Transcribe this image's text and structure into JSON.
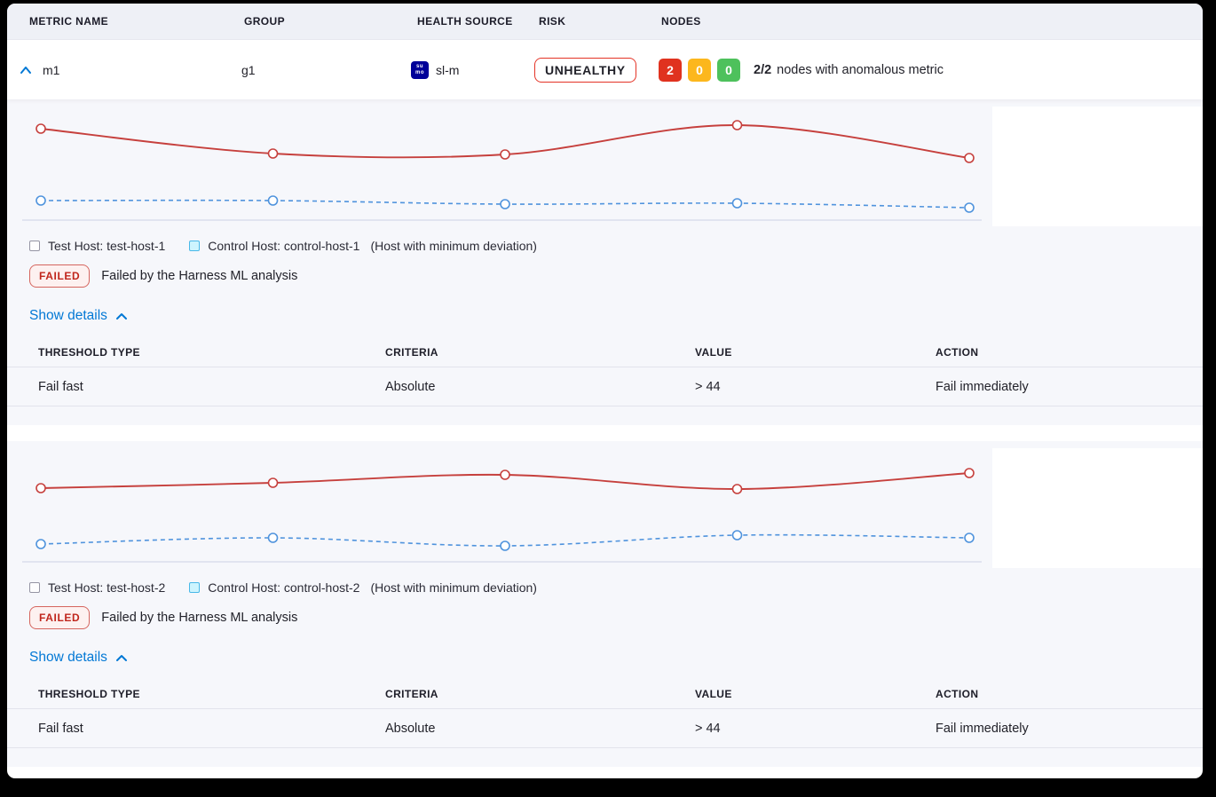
{
  "table_header": {
    "metric_name": "METRIC NAME",
    "group": "GROUP",
    "health_source": "HEALTH SOURCE",
    "risk": "RISK",
    "nodes": "NODES"
  },
  "metric_row": {
    "name": "m1",
    "group": "g1",
    "health_source": {
      "icon": "sumo-logic-icon",
      "icon_line1": "su",
      "icon_line2": "mo",
      "icon_color": "#000099",
      "label": "sl-m"
    },
    "risk": "UNHEALTHY",
    "nodes": {
      "counts": [
        {
          "value": "2",
          "color": "#e0321f"
        },
        {
          "value": "0",
          "color": "#fcb71d"
        },
        {
          "value": "0",
          "color": "#4ec15c"
        }
      ],
      "summary_bold": "2/2",
      "summary_text": "nodes with anomalous metric"
    }
  },
  "sections": [
    {
      "legend": {
        "test_label": "Test Host: test-host-1",
        "control_label": "Control Host: control-host-1",
        "note": "(Host with minimum deviation)"
      },
      "status": {
        "badge": "FAILED",
        "message": "Failed by the Harness ML analysis"
      },
      "details_toggle": "Show details",
      "threshold_table": {
        "headers": [
          "THRESHOLD TYPE",
          "CRITERIA",
          "VALUE",
          "ACTION"
        ],
        "rows": [
          [
            "Fail fast",
            "Absolute",
            "> 44",
            "Fail immediately"
          ]
        ]
      }
    },
    {
      "legend": {
        "test_label": "Test Host: test-host-2",
        "control_label": "Control Host: control-host-2",
        "note": "(Host with minimum deviation)"
      },
      "status": {
        "badge": "FAILED",
        "message": "Failed by the Harness ML analysis"
      },
      "details_toggle": "Show details",
      "threshold_table": {
        "headers": [
          "THRESHOLD TYPE",
          "CRITERIA",
          "VALUE",
          "ACTION"
        ],
        "rows": [
          [
            "Fail fast",
            "Absolute",
            "> 44",
            "Fail immediately"
          ]
        ]
      }
    }
  ],
  "chart_data": [
    {
      "type": "line",
      "title": "",
      "axes": "hidden (sparkline, no tick labels in UI)",
      "x": [
        0,
        1,
        2,
        3,
        4
      ],
      "ylim": [
        0,
        135
      ],
      "series": [
        {
          "name": "Test Host: test-host-1",
          "style": "solid",
          "color": "#c6403d",
          "values": [
            110,
            82,
            81,
            114,
            77
          ]
        },
        {
          "name": "Control Host: control-host-1",
          "style": "dashed",
          "color": "#4f93dd",
          "values": [
            29,
            29,
            25,
            26,
            21
          ]
        }
      ],
      "legend_position": "below"
    },
    {
      "type": "line",
      "title": "",
      "axes": "hidden (sparkline, no tick labels in UI)",
      "x": [
        0,
        1,
        2,
        3,
        4
      ],
      "ylim": [
        0,
        135
      ],
      "series": [
        {
          "name": "Test Host: test-host-2",
          "style": "solid",
          "color": "#c6403d",
          "values": [
            90,
            96,
            105,
            89,
            107
          ]
        },
        {
          "name": "Control Host: control-host-2",
          "style": "dashed",
          "color": "#4f93dd",
          "values": [
            27,
            34,
            25,
            37,
            34
          ]
        }
      ],
      "legend_position": "below"
    }
  ],
  "colors": {
    "accent_blue": "#0278d5",
    "risk_red": "#cf2318",
    "failed_text": "#c0261c",
    "failed_bg": "#fdf1f0",
    "card_bg": "#f6f7fb",
    "header_bg": "#eef0f6",
    "test_line": "#c6403d",
    "control_line": "#4f93dd",
    "baseline": "#ccd1e6"
  }
}
